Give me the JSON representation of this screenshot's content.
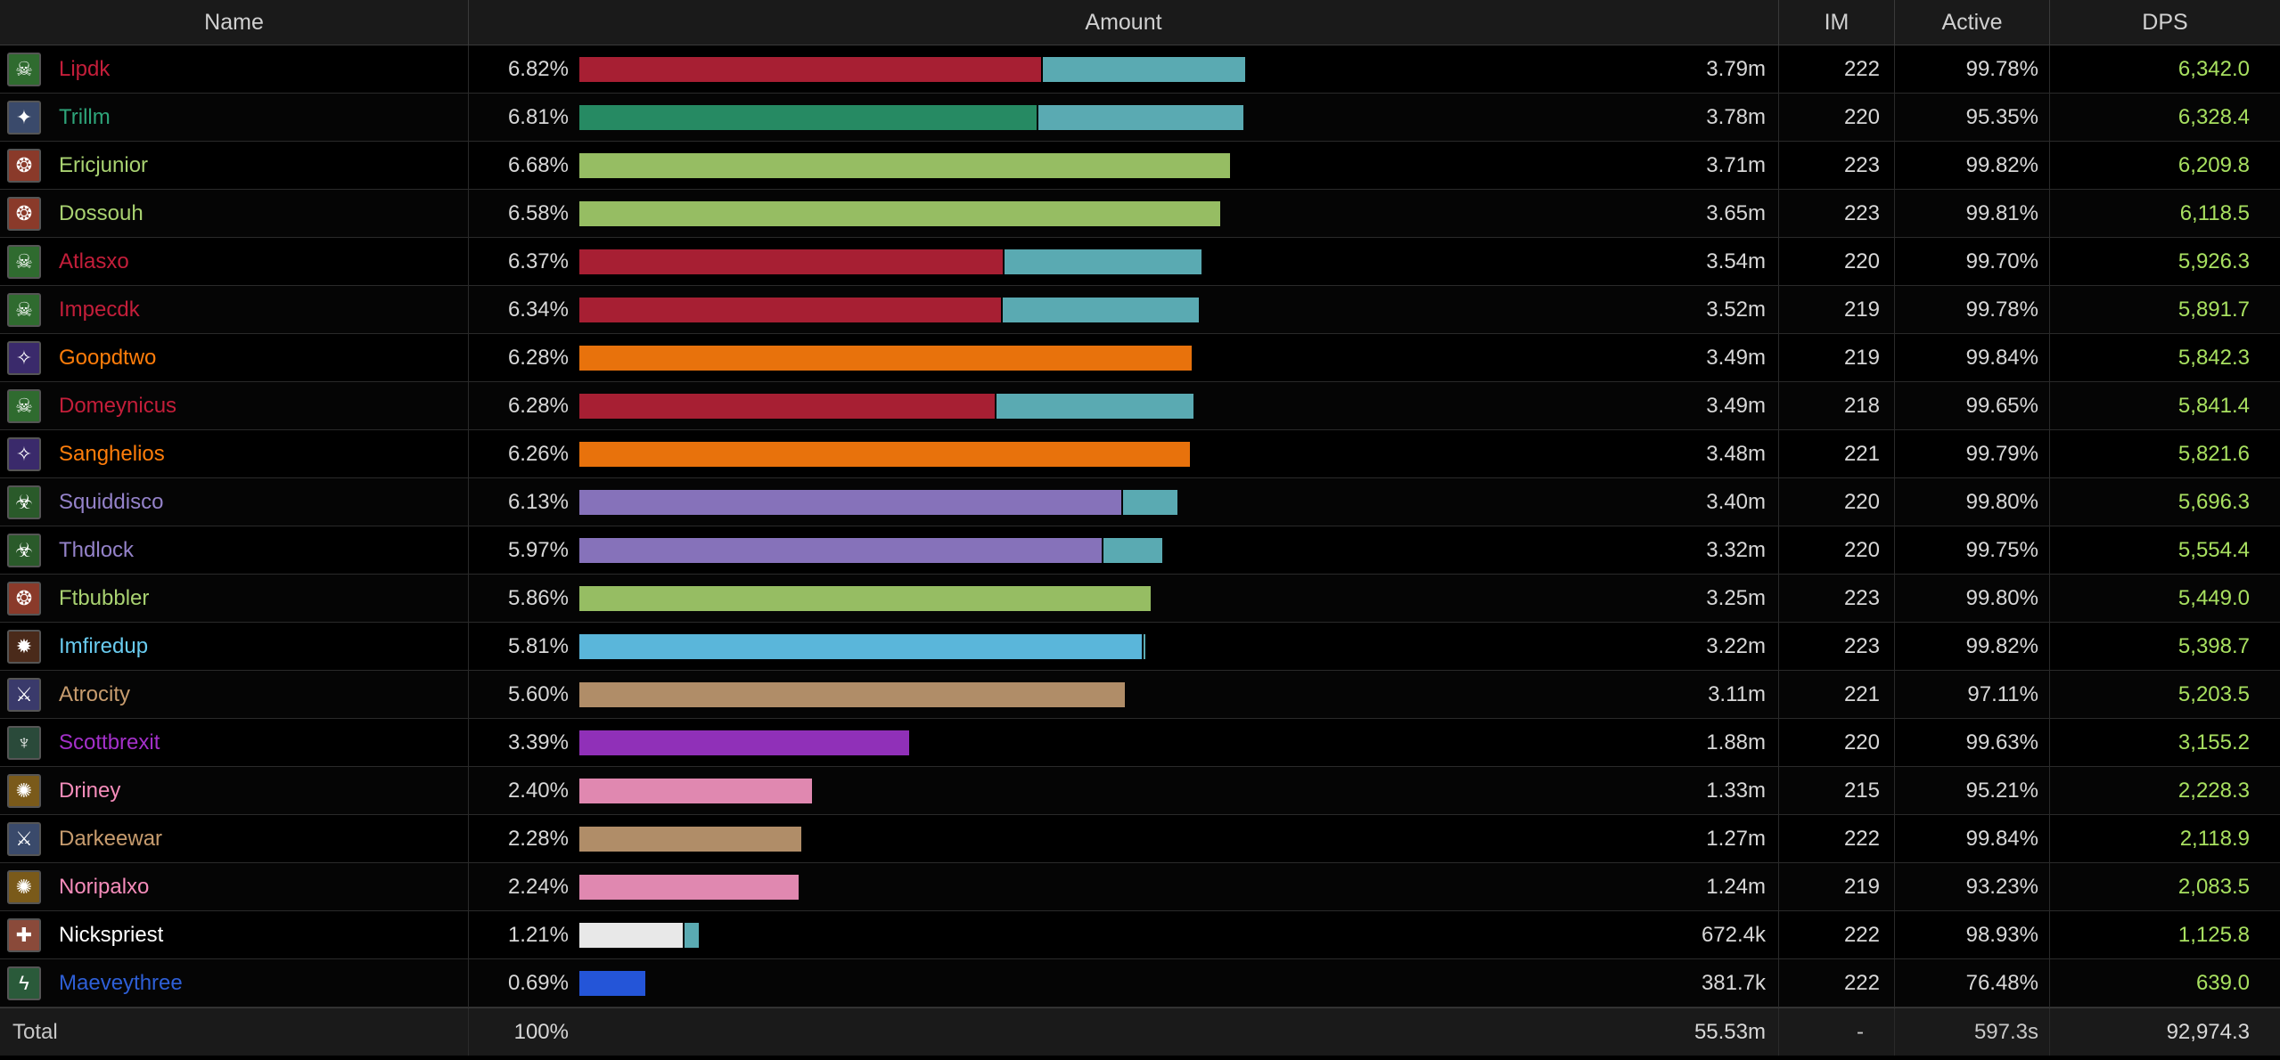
{
  "header": {
    "name": "Name",
    "amount": "Amount",
    "ilvl": "IM",
    "active": "Active",
    "dps": "DPS"
  },
  "rows": [
    {
      "name": "Lipdk",
      "name_color": "#c41e3a",
      "icon": "death-knight-icon",
      "icon_bg": "#2f6b2f",
      "pct": "6.82%",
      "pct_value": 6.82,
      "bar_color": "#a71f33",
      "bar_main": 0.426,
      "bar_ext": 0.187,
      "amount": "3.79m",
      "ilvl": "222",
      "active": "99.78%",
      "dps": "6,342.0"
    },
    {
      "name": "Trillm",
      "name_color": "#2ea57a",
      "icon": "monk-icon",
      "icon_bg": "#3a4a6b",
      "pct": "6.81%",
      "pct_value": 6.81,
      "bar_color": "#268a63",
      "bar_main": 0.422,
      "bar_ext": 0.189,
      "amount": "3.78m",
      "ilvl": "220",
      "active": "95.35%",
      "dps": "6,328.4"
    },
    {
      "name": "Ericjunior",
      "name_color": "#a9d271",
      "icon": "hunter-icon",
      "icon_bg": "#8a3a2a",
      "pct": "6.68%",
      "pct_value": 6.68,
      "bar_color": "#96bd63",
      "bar_main": 0.6,
      "bar_ext": 0,
      "amount": "3.71m",
      "ilvl": "223",
      "active": "99.82%",
      "dps": "6,209.8"
    },
    {
      "name": "Dossouh",
      "name_color": "#a9d271",
      "icon": "hunter-icon",
      "icon_bg": "#8a3a2a",
      "pct": "6.58%",
      "pct_value": 6.58,
      "bar_color": "#96bd63",
      "bar_main": 0.591,
      "bar_ext": 0,
      "amount": "3.65m",
      "ilvl": "223",
      "active": "99.81%",
      "dps": "6,118.5"
    },
    {
      "name": "Atlasxo",
      "name_color": "#c41e3a",
      "icon": "death-knight-icon",
      "icon_bg": "#2f6b2f",
      "pct": "6.37%",
      "pct_value": 6.37,
      "bar_color": "#a71f33",
      "bar_main": 0.391,
      "bar_ext": 0.182,
      "amount": "3.54m",
      "ilvl": "220",
      "active": "99.70%",
      "dps": "5,926.3"
    },
    {
      "name": "Impecdk",
      "name_color": "#c41e3a",
      "icon": "death-knight-icon",
      "icon_bg": "#2f6b2f",
      "pct": "6.34%",
      "pct_value": 6.34,
      "bar_color": "#a71f33",
      "bar_main": 0.389,
      "bar_ext": 0.181,
      "amount": "3.52m",
      "ilvl": "219",
      "active": "99.78%",
      "dps": "5,891.7"
    },
    {
      "name": "Goopdtwo",
      "name_color": "#ff7d0a",
      "icon": "druid-icon",
      "icon_bg": "#3a2a6b",
      "pct": "6.28%",
      "pct_value": 6.28,
      "bar_color": "#e8720c",
      "bar_main": 0.565,
      "bar_ext": 0,
      "amount": "3.49m",
      "ilvl": "219",
      "active": "99.84%",
      "dps": "5,842.3"
    },
    {
      "name": "Domeynicus",
      "name_color": "#c41e3a",
      "icon": "death-knight-icon",
      "icon_bg": "#2f6b2f",
      "pct": "6.28%",
      "pct_value": 6.28,
      "bar_color": "#a71f33",
      "bar_main": 0.383,
      "bar_ext": 0.182,
      "amount": "3.49m",
      "ilvl": "218",
      "active": "99.65%",
      "dps": "5,841.4"
    },
    {
      "name": "Sanghelios",
      "name_color": "#ff7d0a",
      "icon": "druid-icon",
      "icon_bg": "#3a2a6b",
      "pct": "6.26%",
      "pct_value": 6.26,
      "bar_color": "#e8720c",
      "bar_main": 0.563,
      "bar_ext": 0,
      "amount": "3.48m",
      "ilvl": "221",
      "active": "99.79%",
      "dps": "5,821.6"
    },
    {
      "name": "Squiddisco",
      "name_color": "#9482c9",
      "icon": "warlock-icon",
      "icon_bg": "#2a5a2a",
      "pct": "6.13%",
      "pct_value": 6.13,
      "bar_color": "#8672ba",
      "bar_main": 0.5,
      "bar_ext": 0.05,
      "amount": "3.40m",
      "ilvl": "220",
      "active": "99.80%",
      "dps": "5,696.3"
    },
    {
      "name": "Thdlock",
      "name_color": "#9482c9",
      "icon": "warlock-icon",
      "icon_bg": "#2a5a2a",
      "pct": "5.97%",
      "pct_value": 5.97,
      "bar_color": "#8672ba",
      "bar_main": 0.482,
      "bar_ext": 0.054,
      "amount": "3.32m",
      "ilvl": "220",
      "active": "99.75%",
      "dps": "5,554.4"
    },
    {
      "name": "Ftbubbler",
      "name_color": "#a9d271",
      "icon": "hunter-icon",
      "icon_bg": "#8a3a2a",
      "pct": "5.86%",
      "pct_value": 5.86,
      "bar_color": "#96bd63",
      "bar_main": 0.527,
      "bar_ext": 0,
      "amount": "3.25m",
      "ilvl": "223",
      "active": "99.80%",
      "dps": "5,449.0"
    },
    {
      "name": "Imfiredup",
      "name_color": "#69ccf0",
      "icon": "mage-icon",
      "icon_bg": "#4a2a1a",
      "pct": "5.81%",
      "pct_value": 5.81,
      "bar_color": "#5ab6da",
      "bar_main": 0.519,
      "bar_ext": 0.002,
      "amount": "3.22m",
      "ilvl": "223",
      "active": "99.82%",
      "dps": "5,398.7"
    },
    {
      "name": "Atrocity",
      "name_color": "#c79c6e",
      "icon": "warrior-icon",
      "icon_bg": "#3a3a6b",
      "pct": "5.60%",
      "pct_value": 5.6,
      "bar_color": "#b08d68",
      "bar_main": 0.503,
      "bar_ext": 0,
      "amount": "3.11m",
      "ilvl": "221",
      "active": "97.11%",
      "dps": "5,203.5"
    },
    {
      "name": "Scottbrexit",
      "name_color": "#a330c9",
      "icon": "demon-hunter-icon",
      "icon_bg": "#2a4a3a",
      "pct": "3.39%",
      "pct_value": 3.39,
      "bar_color": "#9030b8",
      "bar_main": 0.304,
      "bar_ext": 0,
      "amount": "1.88m",
      "ilvl": "220",
      "active": "99.63%",
      "dps": "3,155.2"
    },
    {
      "name": "Driney",
      "name_color": "#f58cba",
      "icon": "paladin-icon",
      "icon_bg": "#7a5a1a",
      "pct": "2.40%",
      "pct_value": 2.4,
      "bar_color": "#e088b0",
      "bar_main": 0.215,
      "bar_ext": 0,
      "amount": "1.33m",
      "ilvl": "215",
      "active": "95.21%",
      "dps": "2,228.3"
    },
    {
      "name": "Darkeewar",
      "name_color": "#c79c6e",
      "icon": "warrior-icon",
      "icon_bg": "#3a4a6b",
      "pct": "2.28%",
      "pct_value": 2.28,
      "bar_color": "#b08d68",
      "bar_main": 0.205,
      "bar_ext": 0,
      "amount": "1.27m",
      "ilvl": "222",
      "active": "99.84%",
      "dps": "2,118.9"
    },
    {
      "name": "Noripalxo",
      "name_color": "#f58cba",
      "icon": "paladin-icon",
      "icon_bg": "#7a5a1a",
      "pct": "2.24%",
      "pct_value": 2.24,
      "bar_color": "#e088b0",
      "bar_main": 0.202,
      "bar_ext": 0,
      "amount": "1.24m",
      "ilvl": "219",
      "active": "93.23%",
      "dps": "2,083.5"
    },
    {
      "name": "Nickspriest",
      "name_color": "#ffffff",
      "icon": "priest-icon",
      "icon_bg": "#8a4a3a",
      "pct": "1.21%",
      "pct_value": 1.21,
      "bar_color": "#e8e8e8",
      "bar_main": 0.095,
      "bar_ext": 0.013,
      "amount": "672.4k",
      "ilvl": "222",
      "active": "98.93%",
      "dps": "1,125.8"
    },
    {
      "name": "Maeveythree",
      "name_color": "#2e5fd6",
      "icon": "shaman-icon",
      "icon_bg": "#2a5a3a",
      "pct": "0.69%",
      "pct_value": 0.69,
      "bar_color": "#2455d8",
      "bar_main": 0.061,
      "bar_ext": 0,
      "amount": "381.7k",
      "ilvl": "222",
      "active": "76.48%",
      "dps": "639.0"
    }
  ],
  "total": {
    "label": "Total",
    "pct": "100%",
    "amount": "55.53m",
    "ilvl": "-",
    "active": "597.3s",
    "dps": "92,974.3"
  }
}
